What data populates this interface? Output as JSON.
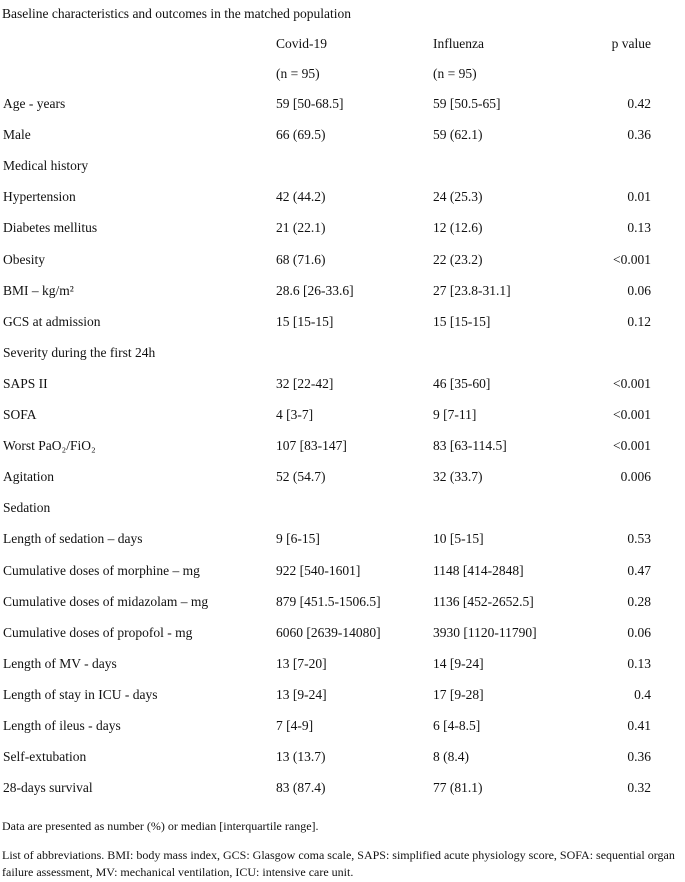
{
  "title": "Baseline characteristics and outcomes in the matched population",
  "header": {
    "col1": "Covid-19",
    "col2": "Influenza",
    "col3": "p value",
    "n1": "(n = 95)",
    "n2": "(n = 95)"
  },
  "rows": [
    {
      "label": "Age - years",
      "covid": "59 [50-68.5]",
      "flu": "59 [50.5-65]",
      "p": "0.42"
    },
    {
      "label": "Male",
      "covid": "66 (69.5)",
      "flu": "59 (62.1)",
      "p": "0.36"
    },
    {
      "label": "Medical history",
      "covid": "",
      "flu": "",
      "p": ""
    },
    {
      "label": "Hypertension",
      "covid": "42 (44.2)",
      "flu": "24 (25.3)",
      "p": "0.01"
    },
    {
      "label": "Diabetes mellitus",
      "covid": "21 (22.1)",
      "flu": "12 (12.6)",
      "p": "0.13"
    },
    {
      "label": "Obesity",
      "covid": "68 (71.6)",
      "flu": "22 (23.2)",
      "p": "<0.001"
    },
    {
      "label": "BMI – kg/m²",
      "covid": "28.6 [26-33.6]",
      "flu": "27 [23.8-31.1]",
      "p": "0.06"
    },
    {
      "label": "GCS at admission",
      "covid": "15 [15-15]",
      "flu": "15 [15-15]",
      "p": "0.12"
    },
    {
      "label": "Severity during the first 24h",
      "covid": "",
      "flu": "",
      "p": ""
    },
    {
      "label": "SAPS II",
      "covid": "32 [22-42]",
      "flu": "46 [35-60]",
      "p": "<0.001"
    },
    {
      "label": "SOFA",
      "covid": "4 [3-7]",
      "flu": "9 [7-11]",
      "p": "<0.001"
    },
    {
      "label": "Worst PaO₂/FiO₂",
      "covid": "107 [83-147]",
      "flu": "83 [63-114.5]",
      "p": "<0.001"
    },
    {
      "label": "Agitation",
      "covid": "52 (54.7)",
      "flu": "32 (33.7)",
      "p": "0.006"
    },
    {
      "label": "Sedation",
      "covid": "",
      "flu": "",
      "p": ""
    },
    {
      "label": "Length of sedation – days",
      "covid": "9 [6-15]",
      "flu": "10 [5-15]",
      "p": "0.53"
    },
    {
      "label": "Cumulative doses of morphine – mg",
      "covid": "922 [540-1601]",
      "flu": "1148 [414-2848]",
      "p": "0.47"
    },
    {
      "label": "Cumulative doses of midazolam – mg",
      "covid": "879 [451.5-1506.5]",
      "flu": "1136 [452-2652.5]",
      "p": "0.28"
    },
    {
      "label": "Cumulative doses of propofol - mg",
      "covid": "6060 [2639-14080]",
      "flu": "3930 [1120-11790]",
      "p": "0.06"
    },
    {
      "label": "Length of MV - days",
      "covid": "13 [7-20]",
      "flu": "14 [9-24]",
      "p": "0.13"
    },
    {
      "label": "Length of stay in ICU - days",
      "covid": "13 [9-24]",
      "flu": "17 [9-28]",
      "p": "0.4"
    },
    {
      "label": "Length of ileus - days",
      "covid": "7 [4-9]",
      "flu": "6 [4-8.5]",
      "p": "0.41"
    },
    {
      "label": "Self-extubation",
      "covid": "13 (13.7)",
      "flu": "8 (8.4)",
      "p": "0.36"
    },
    {
      "label": "28-days survival",
      "covid": "83 (87.4)",
      "flu": "77 (81.1)",
      "p": "0.32"
    }
  ],
  "footnotes": {
    "data_note": "Data are presented as number (%) or median [interquartile range].",
    "abbreviations": "List of abbreviations. BMI: body mass index, GCS: Glasgow coma scale, SAPS: simplified acute physiology score, SOFA: sequential organ failure assessment, MV: mechanical ventilation, ICU: intensive care unit."
  }
}
